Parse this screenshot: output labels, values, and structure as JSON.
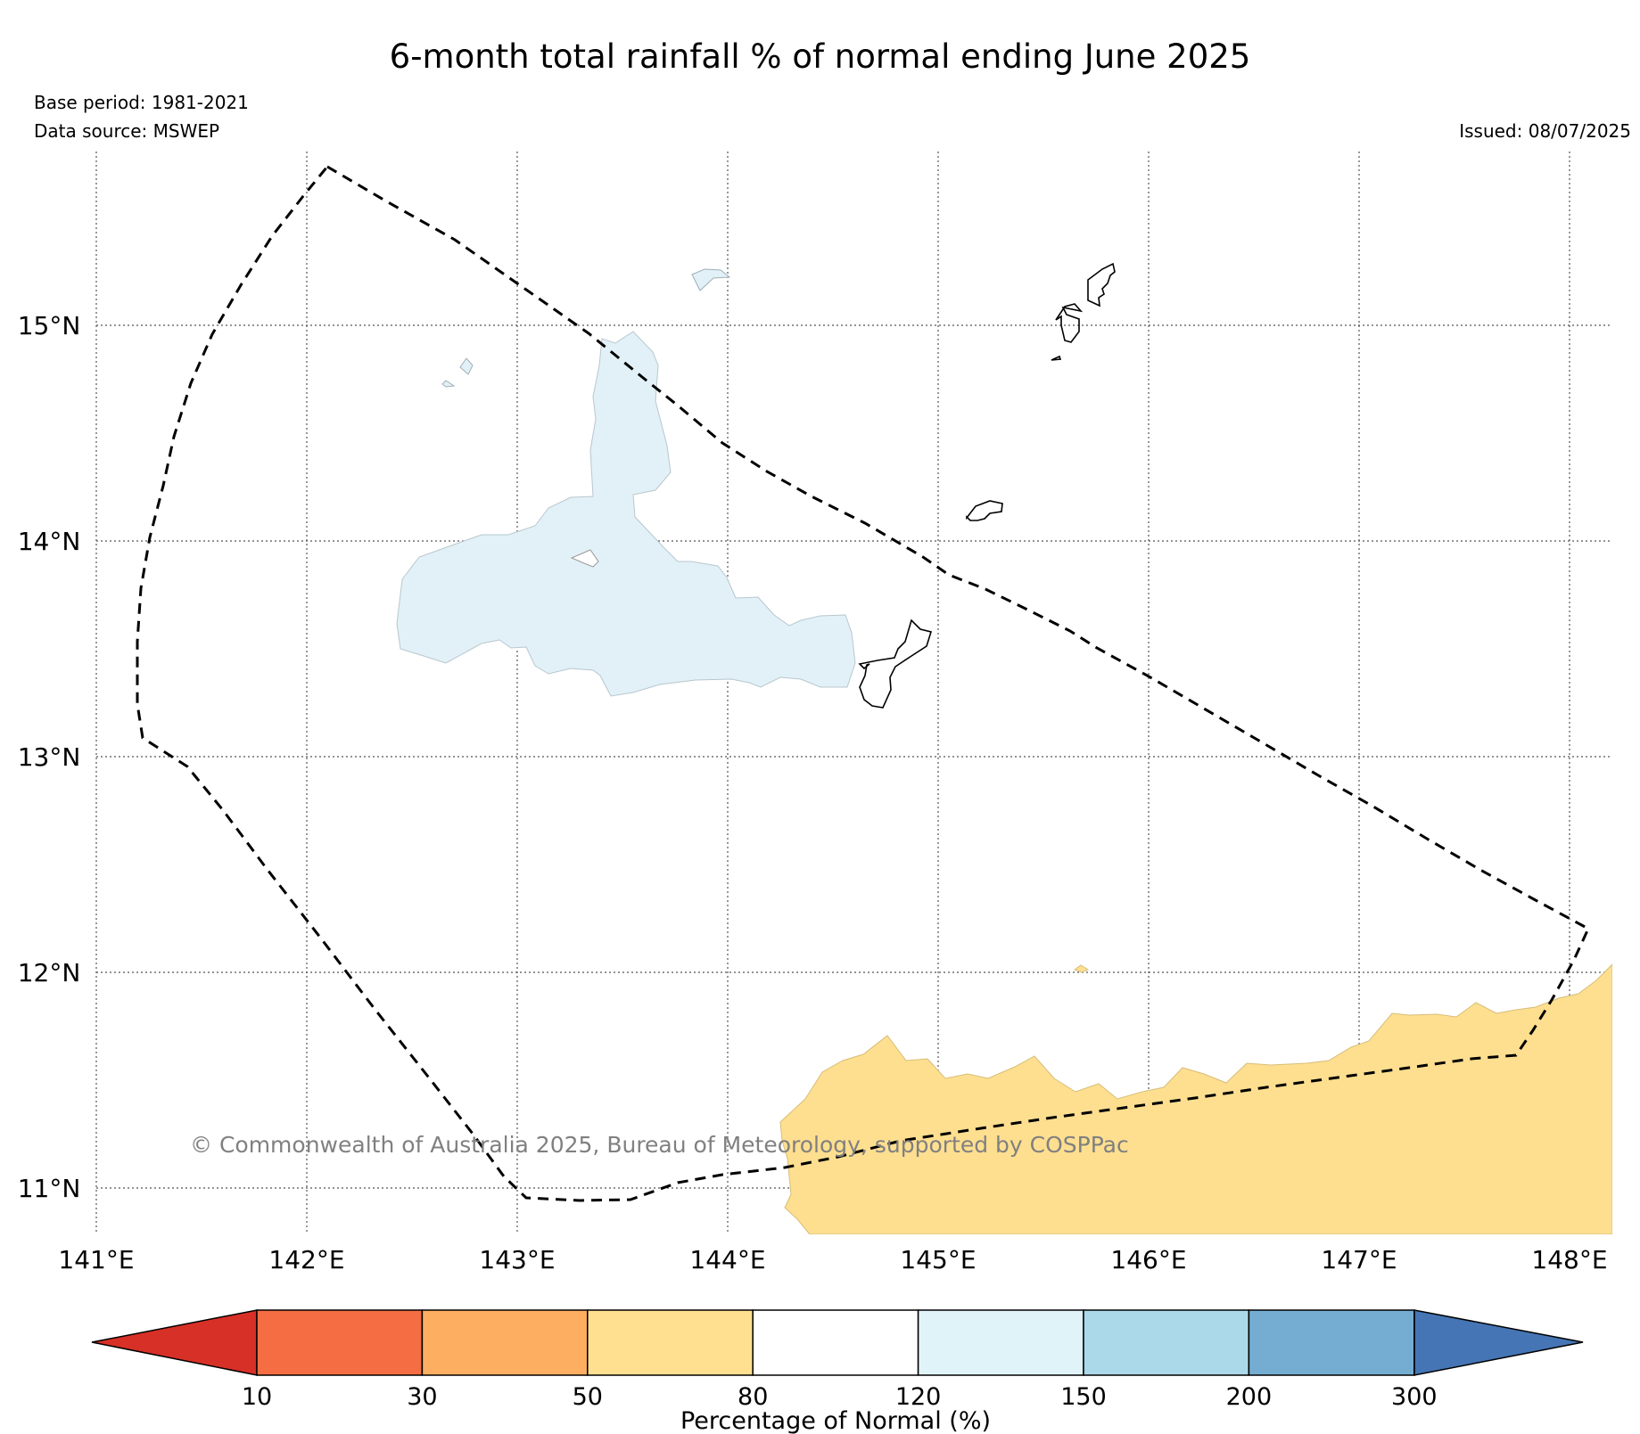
{
  "title": "6-month total rainfall % of normal ending June 2025",
  "base_period": "Base period: 1981-2021",
  "data_source": "Data source: MSWEP",
  "issued": "Issued: 08/07/2025",
  "copyright": "© Commonwealth of Australia 2025, Bureau of Meteorology, supported by COSPPac",
  "map": {
    "lon_range": [
      141.0,
      148.2
    ],
    "lat_range": [
      10.8,
      15.75
    ],
    "lon_ticks": [
      "141°E",
      "142°E",
      "143°E",
      "144°E",
      "145°E",
      "146°E",
      "147°E",
      "148°E"
    ],
    "lat_ticks": [
      "11°N",
      "12°N",
      "13°N",
      "14°N",
      "15°N"
    ],
    "grid": "dotted",
    "boundary": "dashed (exclusive economic zone outline)",
    "shaded_regions": [
      {
        "category": "120-150",
        "color": "#e1f1f7"
      },
      {
        "category": "50-80",
        "color": "#fedf90"
      }
    ],
    "islands": "black outlines"
  },
  "colorbar": {
    "label": "Percentage of Normal (%)",
    "ticks": [
      "10",
      "30",
      "50",
      "80",
      "120",
      "150",
      "200",
      "300"
    ],
    "colors": [
      "#d73027",
      "#f46d43",
      "#fdae61",
      "#fee090",
      "#ffffff",
      "#e0f3f8",
      "#abd9e9",
      "#74add1",
      "#4575b4"
    ],
    "extend": "both"
  }
}
